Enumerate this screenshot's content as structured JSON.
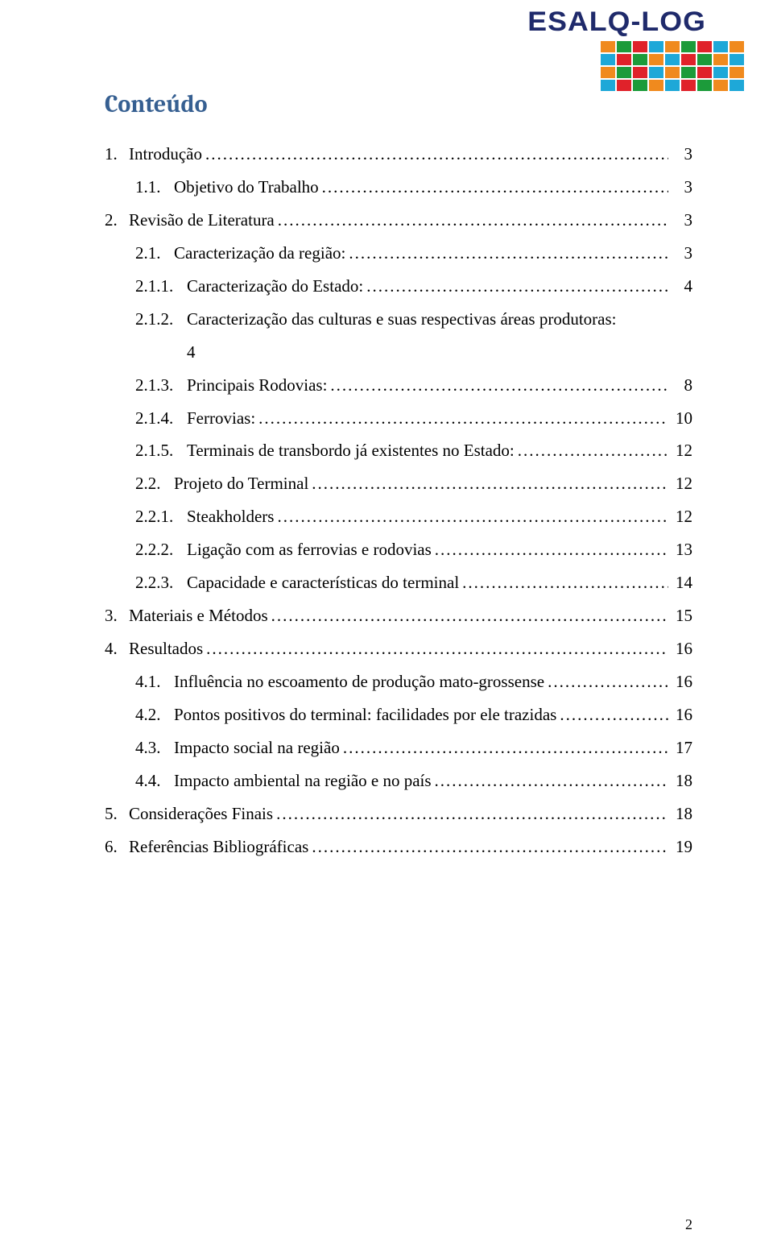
{
  "logo": {
    "text": "ESALQ-LOG",
    "text_color": "#1f2a6b",
    "grid_colors": [
      [
        "#f08a1e",
        "#1c9b3a",
        "#e0222a",
        "#1ea8d8",
        "#f08a1e",
        "#1c9b3a",
        "#e0222a",
        "#1ea8d8",
        "#f08a1e"
      ],
      [
        "#1ea8d8",
        "#e0222a",
        "#1c9b3a",
        "#f08a1e",
        "#1ea8d8",
        "#e0222a",
        "#1c9b3a",
        "#f08a1e",
        "#1ea8d8"
      ],
      [
        "#f08a1e",
        "#1c9b3a",
        "#e0222a",
        "#1ea8d8",
        "#f08a1e",
        "#1c9b3a",
        "#e0222a",
        "#1ea8d8",
        "#f08a1e"
      ],
      [
        "#1ea8d8",
        "#e0222a",
        "#1c9b3a",
        "#f08a1e",
        "#1ea8d8",
        "#e0222a",
        "#1c9b3a",
        "#f08a1e",
        "#1ea8d8"
      ]
    ]
  },
  "title": "Conteúdo",
  "title_color": "#365f91",
  "title_fontsize": 30,
  "body_fontsize": 21,
  "background_color": "#ffffff",
  "text_color": "#000000",
  "toc": [
    {
      "level": 1,
      "num": "1.",
      "label": "Introdução",
      "page": "3"
    },
    {
      "level": 2,
      "num": "1.1.",
      "label": "Objetivo do Trabalho",
      "page": "3"
    },
    {
      "level": 1,
      "num": "2.",
      "label": "Revisão de Literatura",
      "page": "3"
    },
    {
      "level": 2,
      "num": "2.1.",
      "label": "Caracterização da região:",
      "page": "3"
    },
    {
      "level": 3,
      "num": "2.1.1.",
      "label": "Caracterização do Estado:",
      "page": "4"
    },
    {
      "level": 3,
      "num": "2.1.2.",
      "label": "Caracterização das culturas e suas respectivas áreas produtoras:",
      "label2": "4",
      "page": "",
      "wrap": true
    },
    {
      "level": 3,
      "num": "2.1.3.",
      "label": "Principais Rodovias:",
      "page": "8"
    },
    {
      "level": 3,
      "num": "2.1.4.",
      "label": "Ferrovias:",
      "page": "10"
    },
    {
      "level": 3,
      "num": "2.1.5.",
      "label": "Terminais de transbordo já existentes no Estado:",
      "page": "12"
    },
    {
      "level": 2,
      "num": "2.2.",
      "label": "Projeto do Terminal",
      "page": "12"
    },
    {
      "level": 3,
      "num": "2.2.1.",
      "label": "Steakholders",
      "page": "12"
    },
    {
      "level": 3,
      "num": "2.2.2.",
      "label": "Ligação com as ferrovias e rodovias",
      "page": "13"
    },
    {
      "level": 3,
      "num": "2.2.3.",
      "label": "Capacidade e características do terminal",
      "page": "14"
    },
    {
      "level": 1,
      "num": "3.",
      "label": "Materiais e Métodos",
      "page": "15"
    },
    {
      "level": 1,
      "num": "4.",
      "label": "Resultados",
      "page": "16"
    },
    {
      "level": 2,
      "num": "4.1.",
      "label": "Influência no escoamento de produção mato-grossense",
      "page": "16"
    },
    {
      "level": 2,
      "num": "4.2.",
      "label": "Pontos positivos do terminal: facilidades por ele trazidas",
      "page": "16"
    },
    {
      "level": 2,
      "num": "4.3.",
      "label": "Impacto social na região",
      "page": "17"
    },
    {
      "level": 2,
      "num": "4.4.",
      "label": "Impacto ambiental na região e no país",
      "page": "18"
    },
    {
      "level": 1,
      "num": "5.",
      "label": "Considerações Finais",
      "page": "18"
    },
    {
      "level": 1,
      "num": "6.",
      "label": "Referências Bibliográficas",
      "page": "19"
    }
  ],
  "footer_page_number": "2"
}
